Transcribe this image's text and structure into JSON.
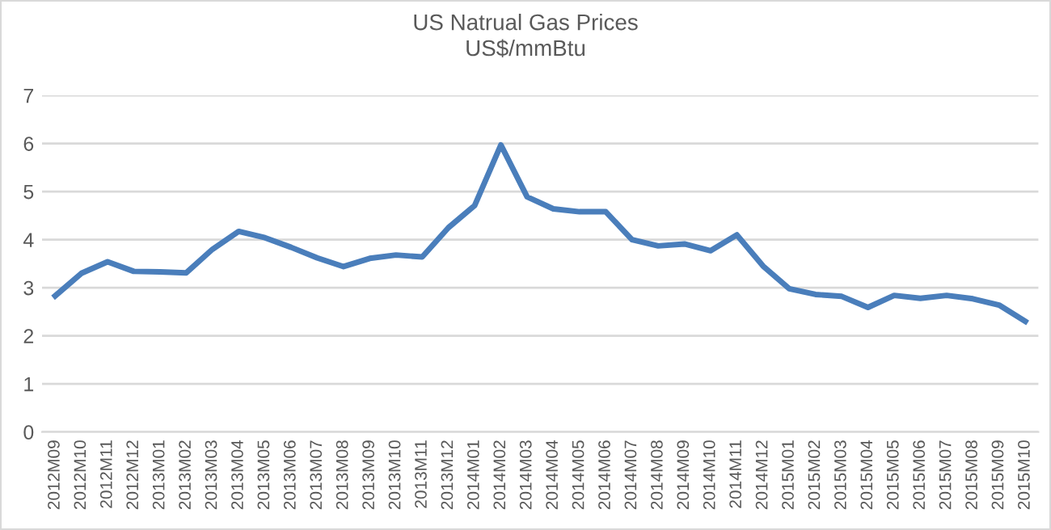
{
  "chart_data": {
    "type": "line",
    "title": "US Natrual Gas Prices\nUS$/mmBtu",
    "categories": [
      "2012M09",
      "2012M10",
      "2012M11",
      "2012M12",
      "2013M01",
      "2013M02",
      "2013M03",
      "2013M04",
      "2013M05",
      "2013M06",
      "2013M07",
      "2013M08",
      "2013M09",
      "2013M10",
      "2013M11",
      "2013M12",
      "2014M01",
      "2014M02",
      "2014M03",
      "2014M04",
      "2014M05",
      "2014M06",
      "2014M07",
      "2014M08",
      "2014M09",
      "2014M10",
      "2014M11",
      "2014M12",
      "2015M01",
      "2015M02",
      "2015M03",
      "2015M04",
      "2015M05",
      "2015M06",
      "2015M07",
      "2015M08",
      "2015M09",
      "2015M10"
    ],
    "series": [
      {
        "color": "#4a7ebb",
        "values": [
          2.83,
          3.3,
          3.54,
          3.34,
          3.33,
          3.31,
          3.8,
          4.17,
          4.04,
          3.84,
          3.62,
          3.44,
          3.61,
          3.68,
          3.64,
          4.25,
          4.71,
          5.97,
          4.89,
          4.64,
          4.58,
          4.58,
          4.0,
          3.87,
          3.91,
          3.77,
          4.1,
          3.45,
          2.98,
          2.86,
          2.82,
          2.59,
          2.84,
          2.78,
          2.84,
          2.77,
          2.64,
          2.3
        ]
      }
    ],
    "ylim": [
      0,
      7
    ],
    "yticks": [
      0,
      1,
      2,
      3,
      4,
      5,
      6,
      7
    ],
    "grid": "y",
    "marker": "none",
    "line_style": "solid"
  }
}
